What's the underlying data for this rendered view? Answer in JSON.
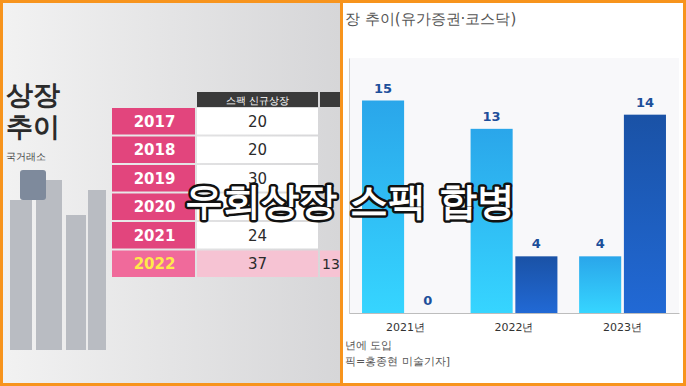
{
  "overlay_title": "우회상장 스팩 합병",
  "left_panel": {
    "title_lines": [
      "상장",
      "추이"
    ],
    "source": "국거래소",
    "table": {
      "header": "스팩 신규상장",
      "rows": [
        {
          "year": "2017",
          "value": 20
        },
        {
          "year": "2018",
          "value": 20
        },
        {
          "year": "2019",
          "value": 30
        },
        {
          "year": "2020",
          "value": null
        },
        {
          "year": "2021",
          "value": 24
        },
        {
          "year": "2022",
          "value": 37,
          "value2": 13
        }
      ]
    }
  },
  "chart_data": {
    "type": "bar",
    "title": "장 추이(유가증권·코스닥)",
    "categories": [
      "2021년",
      "2022년",
      "2023년"
    ],
    "series": [
      {
        "color": "#2aa6ea",
        "values": [
          15,
          13,
          4
        ]
      },
      {
        "color": "#1a52a6",
        "values": [
          0,
          4,
          14
        ]
      }
    ],
    "ylim": [
      0,
      18
    ],
    "yticks": [],
    "grid": false,
    "data_labels": true,
    "tick_labels": "x",
    "annotations": [
      "년에 도입",
      "픽=홍종현 미술기자]"
    ]
  }
}
